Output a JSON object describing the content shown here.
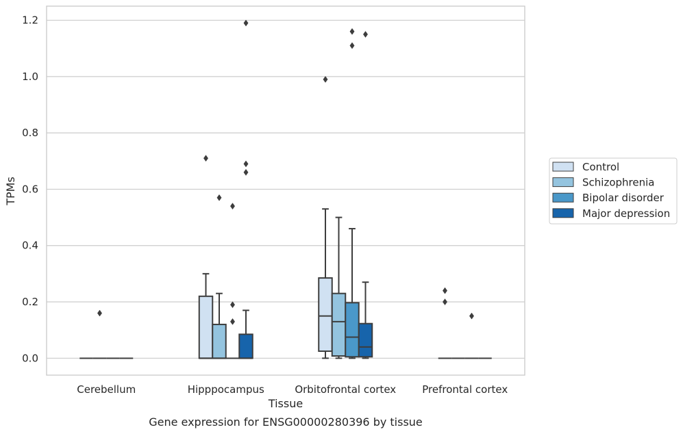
{
  "chart_data": {
    "type": "box",
    "xlabel": "Tissue",
    "ylabel": "TPMs",
    "caption": "Gene expression for ENSG00000280396 by tissue",
    "ylim": [
      -0.06,
      1.25
    ],
    "yticks": [
      "0.0",
      "0.2",
      "0.4",
      "0.6",
      "0.8",
      "1.0",
      "1.2"
    ],
    "grid": "horizontal",
    "legend_position": "right",
    "categories": [
      "Cerebellum",
      "Hipppocampus",
      "Orbitofrontal cortex",
      "Prefrontal cortex"
    ],
    "series": [
      {
        "name": "Control",
        "color": "#d0e1f2",
        "boxes": [
          {
            "whislo": 0,
            "q1": 0,
            "med": 0,
            "q3": 0,
            "whishi": 0,
            "fliers": []
          },
          {
            "whislo": 0,
            "q1": 0,
            "med": 0,
            "q3": 0.22,
            "whishi": 0.3,
            "fliers": [
              0.71
            ]
          },
          {
            "whislo": 0,
            "q1": 0.025,
            "med": 0.15,
            "q3": 0.285,
            "whishi": 0.53,
            "fliers": [
              0.99
            ]
          },
          {
            "whislo": 0,
            "q1": 0,
            "med": 0,
            "q3": 0,
            "whishi": 0,
            "fliers": [
              0.24,
              0.2
            ]
          }
        ]
      },
      {
        "name": "Schizophrenia",
        "color": "#94c4df",
        "boxes": [
          {
            "whislo": 0,
            "q1": 0,
            "med": 0,
            "q3": 0,
            "whishi": 0,
            "fliers": [
              0.16
            ]
          },
          {
            "whislo": 0,
            "q1": 0,
            "med": 0,
            "q3": 0.12,
            "whishi": 0.23,
            "fliers": [
              0.57
            ]
          },
          {
            "whislo": 0,
            "q1": 0.008,
            "med": 0.13,
            "q3": 0.23,
            "whishi": 0.5,
            "fliers": []
          },
          {
            "whislo": 0,
            "q1": 0,
            "med": 0,
            "q3": 0,
            "whishi": 0,
            "fliers": []
          }
        ]
      },
      {
        "name": "Bipolar disorder",
        "color": "#4a98c9",
        "boxes": [
          {
            "whislo": 0,
            "q1": 0,
            "med": 0,
            "q3": 0,
            "whishi": 0,
            "fliers": []
          },
          {
            "whislo": 0,
            "q1": 0,
            "med": 0,
            "q3": 0,
            "whishi": 0,
            "fliers": [
              0.54,
              0.19,
              0.13
            ]
          },
          {
            "whislo": 0,
            "q1": 0.005,
            "med": 0.075,
            "q3": 0.197,
            "whishi": 0.46,
            "fliers": [
              1.16,
              1.11
            ]
          },
          {
            "whislo": 0,
            "q1": 0,
            "med": 0,
            "q3": 0,
            "whishi": 0,
            "fliers": [
              0.15
            ]
          }
        ]
      },
      {
        "name": "Major depression",
        "color": "#1764ab",
        "boxes": [
          {
            "whislo": 0,
            "q1": 0,
            "med": 0,
            "q3": 0,
            "whishi": 0,
            "fliers": []
          },
          {
            "whislo": 0,
            "q1": 0,
            "med": 0,
            "q3": 0.085,
            "whishi": 0.17,
            "fliers": [
              1.19,
              0.69,
              0.66
            ]
          },
          {
            "whislo": 0,
            "q1": 0.005,
            "med": 0.04,
            "q3": 0.123,
            "whishi": 0.27,
            "fliers": [
              1.15
            ]
          },
          {
            "whislo": 0,
            "q1": 0,
            "med": 0,
            "q3": 0,
            "whishi": 0,
            "fliers": []
          }
        ]
      }
    ]
  }
}
